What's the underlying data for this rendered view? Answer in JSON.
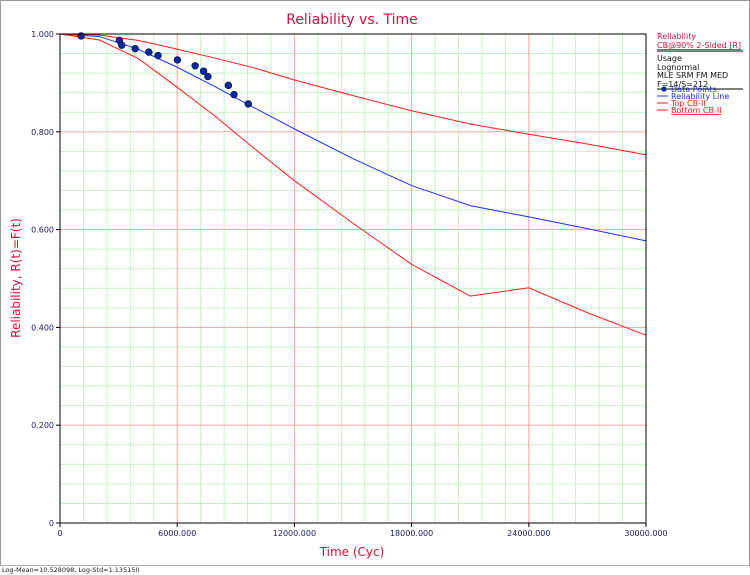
{
  "chart_data": {
    "type": "line",
    "title": "Reliability vs. Time",
    "xlabel": "Time (Cyc)",
    "ylabel": "Reliability, R(t)=F(t)",
    "xlim": [
      0,
      30000
    ],
    "ylim": [
      0,
      1
    ],
    "x_ticks": [
      0,
      6000,
      12000,
      18000,
      24000,
      30000
    ],
    "x_tick_labels": [
      "0",
      "6000.000",
      "12000.000",
      "18000.000",
      "24000.000",
      "30000.000"
    ],
    "y_ticks": [
      0,
      0.2,
      0.4,
      0.6,
      0.8,
      1.0
    ],
    "y_tick_labels": [
      "0",
      "0.200",
      "0.400",
      "0.600",
      "0.800",
      "1.000"
    ],
    "grid": true,
    "legend_position": "right",
    "colors": {
      "major_grid": "#ff9a9a",
      "minor_grid": "#b8f0b8",
      "reliability_line": "#1e2cff",
      "bounds": "#ff1a1a",
      "points": "#0a2a9c",
      "title": "#d0103a",
      "tick_label": "#1a1a6e"
    },
    "series": [
      {
        "name": "Data Points",
        "kind": "points",
        "x": [
          1080,
          3040,
          3160,
          3850,
          4550,
          5020,
          6010,
          6920,
          7350,
          7570,
          8620,
          8910,
          9640
        ],
        "y": [
          0.996,
          0.987,
          0.977,
          0.97,
          0.963,
          0.956,
          0.947,
          0.935,
          0.924,
          0.913,
          0.895,
          0.876,
          0.857
        ]
      },
      {
        "name": "Reliability Line",
        "kind": "line",
        "x": [
          0,
          2000,
          4000,
          6000,
          8000,
          10000,
          12000,
          15000,
          18000,
          21000,
          24000,
          27000,
          30000
        ],
        "y": [
          1.0,
          0.995,
          0.969,
          0.932,
          0.891,
          0.848,
          0.806,
          0.745,
          0.69,
          0.649,
          0.626,
          0.602,
          0.577
        ]
      },
      {
        "name": "Top CB-II",
        "kind": "line",
        "x": [
          0,
          2000,
          4000,
          6000,
          8000,
          10000,
          12000,
          15000,
          18000,
          21000,
          24000,
          27000,
          30000
        ],
        "y": [
          1.0,
          0.998,
          0.987,
          0.969,
          0.95,
          0.93,
          0.906,
          0.874,
          0.843,
          0.816,
          0.795,
          0.775,
          0.753
        ]
      },
      {
        "name": "Bottom CB-II",
        "kind": "line",
        "x": [
          0,
          2000,
          4000,
          6000,
          8000,
          10000,
          12000,
          15000,
          18000,
          21000,
          24000,
          27000,
          30000
        ],
        "y": [
          1.0,
          0.988,
          0.95,
          0.891,
          0.83,
          0.764,
          0.7,
          0.613,
          0.529,
          0.464,
          0.481,
          0.43,
          0.384
        ]
      }
    ]
  },
  "legend": {
    "title": "Reliability",
    "subtitle": "CB@90% 2-Sided [R]",
    "info_lines": [
      "Usage",
      "Lognormal",
      "MLE SRM FM MED",
      "F=14/S=212"
    ],
    "items": [
      "Data Points",
      "Reliability Line",
      "Top CB-II",
      "Bottom CB-II"
    ]
  },
  "footer": {
    "text": "Log-Mean=10.528098, Log-Std=1.135150"
  }
}
